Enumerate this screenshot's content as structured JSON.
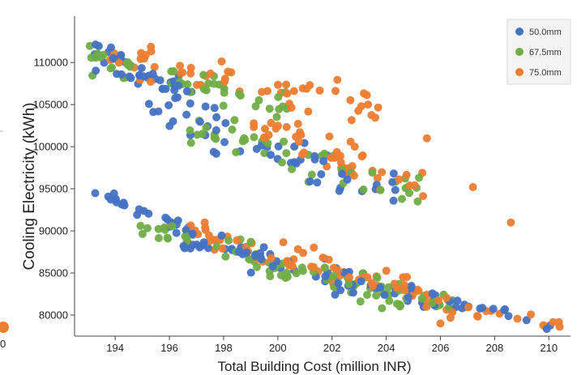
{
  "chart_data": {
    "type": "scatter",
    "title": "",
    "xlabel": "Total Building Cost (million INR)",
    "ylabel": "Cooling Electricity (kWh)",
    "xlim": [
      192.5,
      210.8
    ],
    "ylim": [
      77500,
      115500
    ],
    "xticks": [
      "194",
      "196",
      "198",
      "200",
      "202",
      "204",
      "206",
      "208",
      "210"
    ],
    "yticks": [
      "80000",
      "85000",
      "90000",
      "95000",
      "100000",
      "105000",
      "110000"
    ],
    "grid": false,
    "legend_position": "top-right",
    "colors": {
      "50.0mm": "#4472c4",
      "67.5mm": "#70ad47",
      "75.0mm": "#ed7d31"
    },
    "series": [
      {
        "name": "50.0mm",
        "color": "#4472c4",
        "clusters": [
          {
            "x": [
              192.8,
              197.8
            ],
            "y0": 111600,
            "y1": 104500,
            "spread": 2500,
            "n": 45
          },
          {
            "x": [
              195.0,
              204.5
            ],
            "y0": 104000,
            "y1": 94800,
            "spread": 3200,
            "n": 50
          },
          {
            "x": [
              193.2,
              197.0
            ],
            "y0": 95000,
            "y1": 89500,
            "spread": 1200,
            "n": 25
          },
          {
            "x": [
              196.5,
              207.0
            ],
            "y0": 89000,
            "y1": 80500,
            "spread": 2400,
            "n": 75
          },
          {
            "x": [
              207.0,
              210.2
            ],
            "y0": 81500,
            "y1": 78800,
            "spread": 900,
            "n": 10
          }
        ]
      },
      {
        "name": "67.5mm",
        "color": "#70ad47",
        "clusters": [
          {
            "x": [
              193.0,
              200.5
            ],
            "y0": 110500,
            "y1": 104500,
            "spread": 2800,
            "n": 45
          },
          {
            "x": [
              196.0,
              205.5
            ],
            "y0": 103000,
            "y1": 94500,
            "spread": 3000,
            "n": 45
          },
          {
            "x": [
              194.5,
              206.5
            ],
            "y0": 91000,
            "y1": 80500,
            "spread": 2500,
            "n": 85
          }
        ]
      },
      {
        "name": "75.0mm",
        "color": "#ed7d31",
        "clusters": [
          {
            "x": [
              193.5,
              204.0
            ],
            "y0": 111000,
            "y1": 104500,
            "spread": 3000,
            "n": 55
          },
          {
            "x": [
              199.0,
              205.5
            ],
            "y0": 102500,
            "y1": 95000,
            "spread": 3000,
            "n": 45
          },
          {
            "x": [
              196.0,
              207.5
            ],
            "y0": 90500,
            "y1": 80500,
            "spread": 2500,
            "n": 85
          },
          {
            "x": [
              207.5,
              210.5
            ],
            "y0": 81000,
            "y1": 78600,
            "spread": 900,
            "n": 10
          }
        ],
        "extra_points": [
          [
            205.5,
            101000
          ],
          [
            207.2,
            95200
          ],
          [
            208.6,
            91000
          ],
          [
            206.0,
            79000
          ]
        ]
      }
    ]
  },
  "cropped": {
    "tick": "0"
  }
}
